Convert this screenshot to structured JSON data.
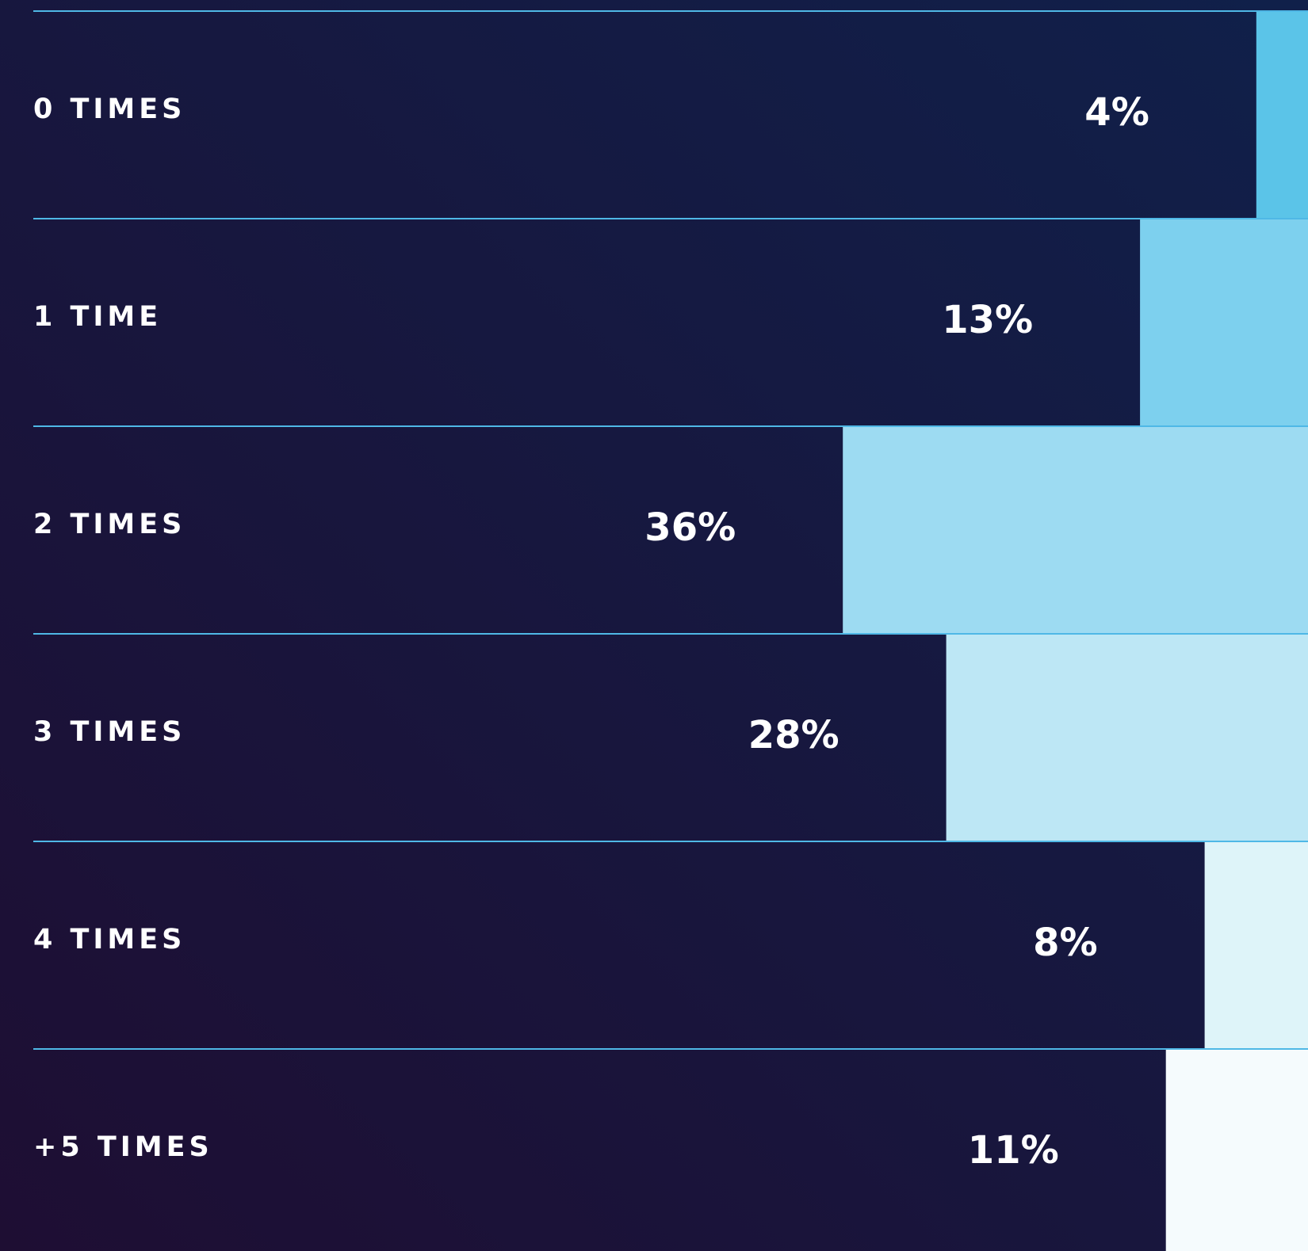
{
  "chart_data": {
    "type": "bar",
    "categories": [
      "0 TIMES",
      "1 TIME",
      "2 TIMES",
      "3 TIMES",
      "4 TIMES",
      "+5 TIMES"
    ],
    "values": [
      4,
      13,
      36,
      28,
      8,
      11
    ],
    "value_labels": [
      "4%",
      "13%",
      "36%",
      "28%",
      "8%",
      "11%"
    ],
    "colors": [
      "#5bc4e8",
      "#7dd0ee",
      "#9ddbf2",
      "#bde7f5",
      "#def4f9",
      "#f5fbfd"
    ]
  }
}
